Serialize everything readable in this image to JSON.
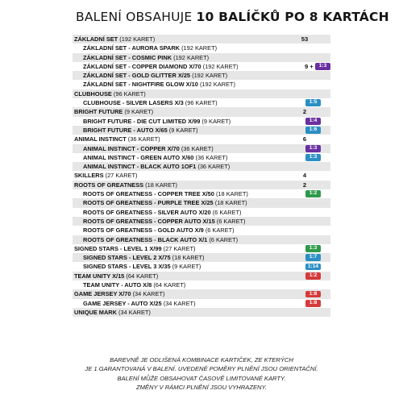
{
  "title": {
    "prefix": "BALENÍ OBSAHUJE ",
    "bold": "10 BALÍČKŮ PO 8 KARTÁCH"
  },
  "rows": [
    {
      "label": "ZÁKLADNÍ SET",
      "count": "(192 KARET)",
      "qty": "53",
      "sub": false,
      "shade": true
    },
    {
      "label": "ZÁKLADNÍ SET - AURORA SPARK",
      "count": "(192 KARET)",
      "qty": "",
      "sub": true,
      "shade": false
    },
    {
      "label": "ZÁKLADNÍ SET - COSMIC PINK",
      "count": "(192 KARET)",
      "qty": "",
      "sub": true,
      "shade": true
    },
    {
      "label": "ZÁKLADNÍ SET - COPPER DIAMOND X/70",
      "count": "(192 KARET)",
      "qty": "",
      "extra": "9 +",
      "badge": "1:3",
      "badge_color": "#6a2fa0",
      "sub": true,
      "shade": false
    },
    {
      "label": "ZÁKLADNÍ SET - GOLD GLITTER X/25",
      "count": "(192 KARET)",
      "qty": "",
      "sub": true,
      "shade": true
    },
    {
      "label": "ZÁKLADNÍ SET - NIGHTFIRE GLOW X/10",
      "count": "(192 KARET)",
      "qty": "",
      "sub": true,
      "shade": false
    },
    {
      "label": "CLUBHOUSE",
      "count": "(96 KARET)",
      "qty": "",
      "sub": false,
      "shade": true
    },
    {
      "label": "CLUBHOUSE - SILVER LASERS X/3",
      "count": "(96 KARET)",
      "qty": "",
      "badge": "1:5",
      "badge_color": "#2a8fc4",
      "sub": true,
      "shade": false
    },
    {
      "label": "BRIGHT FUTURE",
      "count": "(9 KARET)",
      "qty": "2",
      "sub": false,
      "shade": true
    },
    {
      "label": "BRIGHT FUTURE - DIE CUT LIMITED X/99",
      "count": "(9 KARET)",
      "qty": "",
      "badge": "1:4",
      "badge_color": "#6a2fa0",
      "sub": true,
      "shade": false
    },
    {
      "label": "BRIGHT FUTURE - AUTO X/65",
      "count": "(9 KARET)",
      "qty": "",
      "badge": "1:6",
      "badge_color": "#2a8fc4",
      "sub": true,
      "shade": true
    },
    {
      "label": "ANIMAL INSTINCT",
      "count": "(36 KARET)",
      "qty": "6",
      "sub": false,
      "shade": false
    },
    {
      "label": "ANIMAL INSTINCT - COPPER X/70",
      "count": "(36 KARET)",
      "qty": "",
      "badge": "1:3",
      "badge_color": "#6a2fa0",
      "sub": true,
      "shade": true
    },
    {
      "label": "ANIMAL INSTINCT - GREEN AUTO X/60",
      "count": "(36 KARET)",
      "qty": "",
      "badge": "1:3",
      "badge_color": "#2a8fc4",
      "sub": true,
      "shade": false
    },
    {
      "label": "ANIMAL INSTINCT - BLACK AUTO 1OF1",
      "count": "(36 KARET)",
      "qty": "",
      "sub": true,
      "shade": true
    },
    {
      "label": "SKILLERS",
      "count": "(27 KARET)",
      "qty": "4",
      "sub": false,
      "shade": false
    },
    {
      "label": "ROOTS OF GREATNESS",
      "count": "(18 KARET)",
      "qty": "2",
      "sub": false,
      "shade": true
    },
    {
      "label": "ROOTS OF GREATNESS - COPPER TREE X/50",
      "count": "(18 KARET)",
      "qty": "",
      "badge": "1:2",
      "badge_color": "#2e9a4a",
      "sub": true,
      "shade": false
    },
    {
      "label": "ROOTS OF GREATNESS - PURPLE TREE X/25",
      "count": "(18 KARET)",
      "qty": "",
      "sub": true,
      "shade": true
    },
    {
      "label": "ROOTS OF GREATNESS - SILVER AUTO X/20",
      "count": "(6 KARET)",
      "qty": "",
      "sub": true,
      "shade": false
    },
    {
      "label": "ROOTS OF GREATNESS - COPPER AUTO X/15",
      "count": "(6 KARET)",
      "qty": "",
      "sub": true,
      "shade": true
    },
    {
      "label": "ROOTS OF GREATNESS - GOLD AUTO X/9",
      "count": "(6 KARET)",
      "qty": "",
      "sub": true,
      "shade": false
    },
    {
      "label": "ROOTS OF GREATNESS - BLACK AUTO X/1",
      "count": "(6 KARET)",
      "qty": "",
      "sub": true,
      "shade": true
    },
    {
      "label": "SIGNED STARS - LEVEL 1 X/99",
      "count": "(27 KARET)",
      "qty": "",
      "badge": "1:3",
      "badge_color": "#2e9a4a",
      "sub": false,
      "shade": false
    },
    {
      "label": "SIGNED STARS - LEVEL 2 X/75",
      "count": "(18 KARET)",
      "qty": "",
      "badge": "1:7",
      "badge_color": "#2a8fc4",
      "sub": true,
      "shade": true
    },
    {
      "label": "SIGNED STARS - LEVEL 3 X/35",
      "count": "(9 KARET)",
      "qty": "",
      "badge": "1:14",
      "badge_color": "#2a8fc4",
      "sub": true,
      "shade": false
    },
    {
      "label": "TEAM UNITY X/15",
      "count": "(64 KARET)",
      "qty": "",
      "badge": "1:2",
      "badge_color": "#d63a3a",
      "sub": false,
      "shade": true
    },
    {
      "label": "TEAM UNITY - AUTO X/8",
      "count": "(64 KARET)",
      "qty": "",
      "sub": true,
      "shade": false
    },
    {
      "label": "GAME JERSEY X/70",
      "count": "(34 KARET)",
      "qty": "",
      "badge": "1:8",
      "badge_color": "#d63a3a",
      "sub": false,
      "shade": true
    },
    {
      "label": "GAME JERSEY - AUTO X/25",
      "count": "(34 KARET)",
      "qty": "",
      "badge": "1:8",
      "badge_color": "#d63a3a",
      "sub": true,
      "shade": false
    },
    {
      "label": "UNIQUE MARK",
      "count": "(34 KARET)",
      "qty": "",
      "sub": false,
      "shade": true
    }
  ],
  "footer": [
    "BAREVNĚ JE ODLIŠENÁ KOMBINACE KARTIČEK, ZE KTERÝCH",
    "JE 1 GARANTOVANÁ V BALENÍ. UVEDENÉ POMĚRY PLNĚNÍ JSOU ORIENTAČNÍ.",
    "BALENÍ MŮŽE OBSAHOVAT ČASOVĚ LIMITOVANÉ KARTY.",
    "ZMĚNY V RÁMCI PLNĚNÍ JSOU VYHRAZENY."
  ]
}
